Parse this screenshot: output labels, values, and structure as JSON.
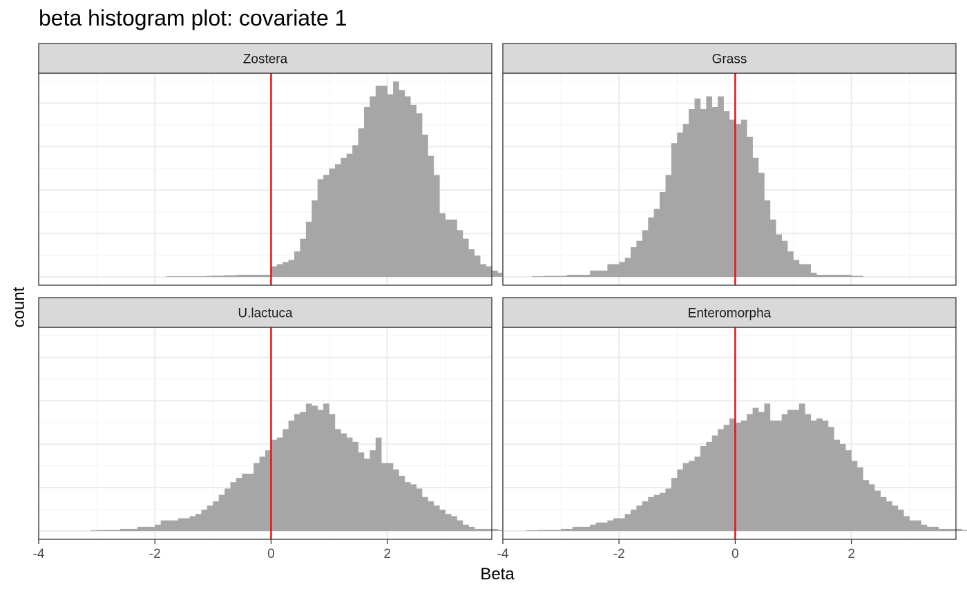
{
  "chart_data": {
    "type": "bar",
    "title": "beta histogram plot: covariate 1",
    "xlabel": "Beta",
    "ylabel": "count",
    "xlim": [
      -4,
      3.8
    ],
    "xticks": [
      -4,
      -2,
      0,
      2
    ],
    "x_tick_labels": [
      "-4",
      "-2",
      "0",
      "2"
    ],
    "bin_width": 0.1,
    "grid": true,
    "vline": {
      "x": 0,
      "color": "#ee1111"
    },
    "bar_color": "#a6a6a6",
    "panels": [
      {
        "strip": "Zostera",
        "ylim": [
          0,
          92
        ],
        "bin_start": -1.8,
        "counts": [
          0.3,
          0.3,
          0.3,
          0.3,
          0.3,
          0.3,
          0.3,
          0.5,
          0.6,
          0.6,
          0.8,
          0.8,
          1,
          1,
          1,
          1,
          1,
          1,
          5,
          6,
          7,
          8,
          12,
          18,
          26,
          36,
          46,
          48,
          51,
          53,
          56,
          58,
          62,
          70,
          80,
          85,
          90,
          90,
          86,
          92,
          88,
          85,
          81,
          77,
          67,
          57,
          48,
          30,
          27,
          27,
          22,
          18,
          13,
          10,
          6,
          5,
          3,
          2,
          1,
          1,
          0.5,
          0.3
        ]
      },
      {
        "strip": "Grass",
        "ylim": [
          0,
          92
        ],
        "bin_start": -3.5,
        "counts": [
          0.3,
          0.3,
          0.5,
          0.5,
          0.5,
          0.5,
          1,
          1,
          1,
          1,
          3,
          3,
          3,
          6,
          6,
          7,
          9,
          14,
          17,
          22,
          28,
          32,
          40,
          48,
          63,
          68,
          72,
          79,
          84,
          79,
          85,
          80,
          85,
          78,
          74,
          72,
          74,
          66,
          56,
          49,
          36,
          27,
          20,
          17,
          12,
          8,
          6,
          6,
          2,
          1,
          1,
          1,
          1,
          1,
          1,
          0.5,
          0.5
        ]
      },
      {
        "strip": "U.lactuca",
        "ylim": [
          0,
          92
        ],
        "bin_start": -3.1,
        "counts": [
          0.3,
          0.5,
          0.5,
          0.5,
          0.5,
          1,
          1,
          1,
          2,
          2,
          2,
          3,
          5,
          5,
          5,
          6,
          6,
          7,
          8,
          10,
          12,
          14,
          17,
          20,
          23,
          25,
          27,
          27,
          32,
          35,
          38,
          43,
          44,
          48,
          52,
          55,
          56,
          60,
          59,
          57,
          60,
          55,
          48,
          46,
          44,
          42,
          37,
          34,
          38,
          44,
          32,
          32,
          29,
          26,
          23,
          22,
          20,
          16,
          14,
          12,
          10,
          8,
          7,
          5,
          3,
          2,
          1,
          1,
          1,
          1,
          0.5,
          0.5
        ]
      },
      {
        "strip": "Enteromorpha",
        "ylim": [
          0,
          92
        ],
        "bin_start": -3.6,
        "counts": [
          0.3,
          0.3,
          0.5,
          0.5,
          0.5,
          0.5,
          1,
          1,
          2,
          2,
          2,
          3,
          4,
          4,
          5,
          6,
          6,
          8,
          10,
          12,
          14,
          16,
          17,
          18,
          20,
          25,
          29,
          32,
          33,
          35,
          40,
          42,
          45,
          48,
          50,
          53,
          51,
          52,
          55,
          58,
          56,
          60,
          52,
          52,
          55,
          57,
          57,
          60,
          55,
          52,
          53,
          52,
          49,
          43,
          41,
          38,
          33,
          30,
          24,
          22,
          19,
          16,
          14,
          12,
          10,
          7,
          5,
          5,
          3,
          2,
          2,
          1,
          1,
          1,
          1,
          0.5,
          0.5
        ]
      }
    ]
  }
}
